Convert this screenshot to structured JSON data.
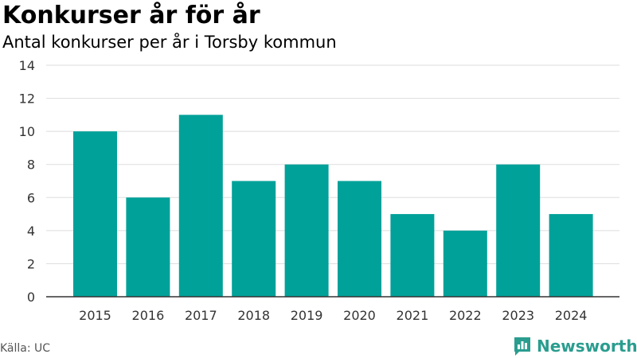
{
  "header": {
    "title": "Konkurser år för år",
    "subtitle": "Antal konkurser per år i Torsby kommun"
  },
  "footer": {
    "source": "Källa: UC",
    "brand": "Newsworthy",
    "brand_icon": "newsworthy-logo-icon"
  },
  "colors": {
    "bar": "#00a199",
    "grid": "#dddddd",
    "axis": "#333333",
    "brand": "#2a9d8f"
  },
  "chart_data": {
    "type": "bar",
    "title": "Konkurser år för år",
    "subtitle": "Antal konkurser per år i Torsby kommun",
    "xlabel": "",
    "ylabel": "",
    "categories": [
      "2015",
      "2016",
      "2017",
      "2018",
      "2019",
      "2020",
      "2021",
      "2022",
      "2023",
      "2024"
    ],
    "values": [
      10,
      6,
      11,
      7,
      8,
      7,
      5,
      4,
      8,
      5
    ],
    "ylim": [
      0,
      14
    ],
    "yticks": [
      "0",
      "2",
      "4",
      "6",
      "8",
      "10",
      "12",
      "14"
    ],
    "grid": true
  }
}
